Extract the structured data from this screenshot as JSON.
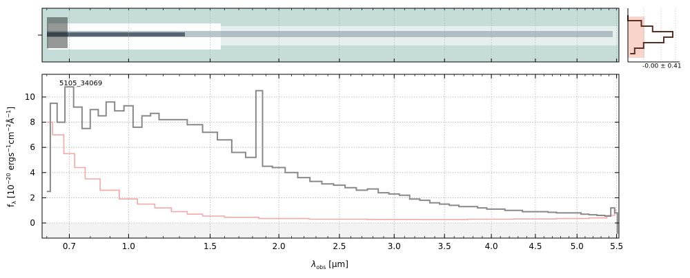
{
  "chart_data": [
    {
      "type": "heatmap",
      "panel": "2D spectrum",
      "colormap": "bone-like (white-blue-gray) over teal background",
      "background_color": "#c5dcd9"
    },
    {
      "type": "line",
      "panel": "profile",
      "annotation": "-0.00 ± 0.41",
      "series": [
        {
          "values": [
            0,
            0.3,
            0.55,
            1.0,
            0.8,
            0.35,
            0.15,
            0.05
          ],
          "color": "#5a2e22"
        }
      ],
      "fill_color": "#f7c9bd"
    },
    {
      "type": "line",
      "panel": "1D spectrum",
      "title": "",
      "object_label": "5105_34069",
      "xlabel_sym": "λ",
      "xlabel_sub": "obs",
      "xlabel_unit": "[μm]",
      "ylabel": "f_λ [10^-20 ergs^-1cm^-2Å^-1]",
      "ylabel_parts": {
        "base": "f",
        "sub": "λ",
        "pre": "[10",
        "exp1": "−20",
        "mid1": " ergs",
        "exp2": "−1",
        "mid2": "cm",
        "exp3": "−2",
        "mid3": "Å",
        "exp4": "−1",
        "post": "]"
      },
      "xticks": [
        "0.7",
        "1.0",
        "1.5",
        "2.0",
        "2.5",
        "3.0",
        "3.5",
        "4.0",
        "4.5",
        "5.0",
        "5.5"
      ],
      "yticks": [
        "0",
        "2",
        "4",
        "6",
        "8",
        "10"
      ],
      "ylim": [
        -1.2,
        11.8
      ],
      "grid": true,
      "series": [
        {
          "color": "#888888",
          "x": [
            0.6,
            0.63,
            0.66,
            0.7,
            0.74,
            0.78,
            0.82,
            0.86,
            0.9,
            0.95,
            1.0,
            1.05,
            1.1,
            1.15,
            1.2,
            1.3,
            1.4,
            1.5,
            1.6,
            1.7,
            1.8,
            1.85,
            1.9,
            2.0,
            2.1,
            2.2,
            2.3,
            2.4,
            2.5,
            2.6,
            2.7,
            2.8,
            2.9,
            3.0,
            3.1,
            3.2,
            3.3,
            3.4,
            3.5,
            3.6,
            3.7,
            3.8,
            3.9,
            4.0,
            4.1,
            4.2,
            4.3,
            4.4,
            4.5,
            4.6,
            4.7,
            4.8,
            4.9,
            5.0,
            5.1,
            5.2,
            5.3,
            5.4,
            5.45,
            5.5,
            5.52
          ],
          "y": [
            2.5,
            9.5,
            8.0,
            10.8,
            9.2,
            7.5,
            9.0,
            8.5,
            9.6,
            8.9,
            9.3,
            7.6,
            8.5,
            8.7,
            8.2,
            8.2,
            7.8,
            7.2,
            6.6,
            5.6,
            5.2,
            10.5,
            4.5,
            4.4,
            4.0,
            3.6,
            3.3,
            3.1,
            3.0,
            2.8,
            2.6,
            2.7,
            2.4,
            2.3,
            2.2,
            1.9,
            1.8,
            1.6,
            1.5,
            1.4,
            1.3,
            1.3,
            1.2,
            1.1,
            1.1,
            1.0,
            1.0,
            0.9,
            0.9,
            0.9,
            0.85,
            0.8,
            0.8,
            0.8,
            0.7,
            0.65,
            0.6,
            0.55,
            1.2,
            0.8,
            -0.8
          ]
        },
        {
          "color": "#f4a8a4",
          "x": [
            0.6,
            0.65,
            0.7,
            0.75,
            0.8,
            0.9,
            1.0,
            1.1,
            1.2,
            1.3,
            1.4,
            1.5,
            1.7,
            2.0,
            2.5,
            3.0,
            3.5,
            4.0,
            4.5,
            5.0,
            5.3,
            5.45,
            5.5
          ],
          "y": [
            8.0,
            7.0,
            5.5,
            4.4,
            3.5,
            2.6,
            1.9,
            1.5,
            1.2,
            0.9,
            0.7,
            0.55,
            0.45,
            0.35,
            0.3,
            0.28,
            0.27,
            0.3,
            0.32,
            0.35,
            0.4,
            0.6,
            1.0
          ]
        }
      ]
    }
  ]
}
